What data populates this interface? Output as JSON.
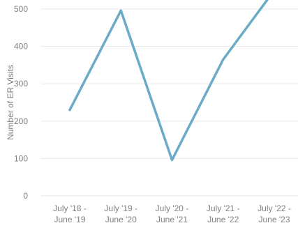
{
  "chart_data": {
    "type": "line",
    "title": "",
    "xlabel": "",
    "ylabel": "Number of ER Visits",
    "categories": [
      [
        "July '18 -",
        "June '19"
      ],
      [
        "July '19 -",
        "June '20"
      ],
      [
        "July '20 -",
        "June '21"
      ],
      [
        "July '21 -",
        "June '22"
      ],
      [
        "July '22 -",
        "June '23"
      ]
    ],
    "values": [
      230,
      496,
      96,
      365,
      550
    ],
    "ylim": [
      0,
      500
    ],
    "yticks": [
      0,
      100,
      200,
      300,
      400,
      500
    ],
    "grid": true,
    "line_color": "#6aabc8"
  }
}
